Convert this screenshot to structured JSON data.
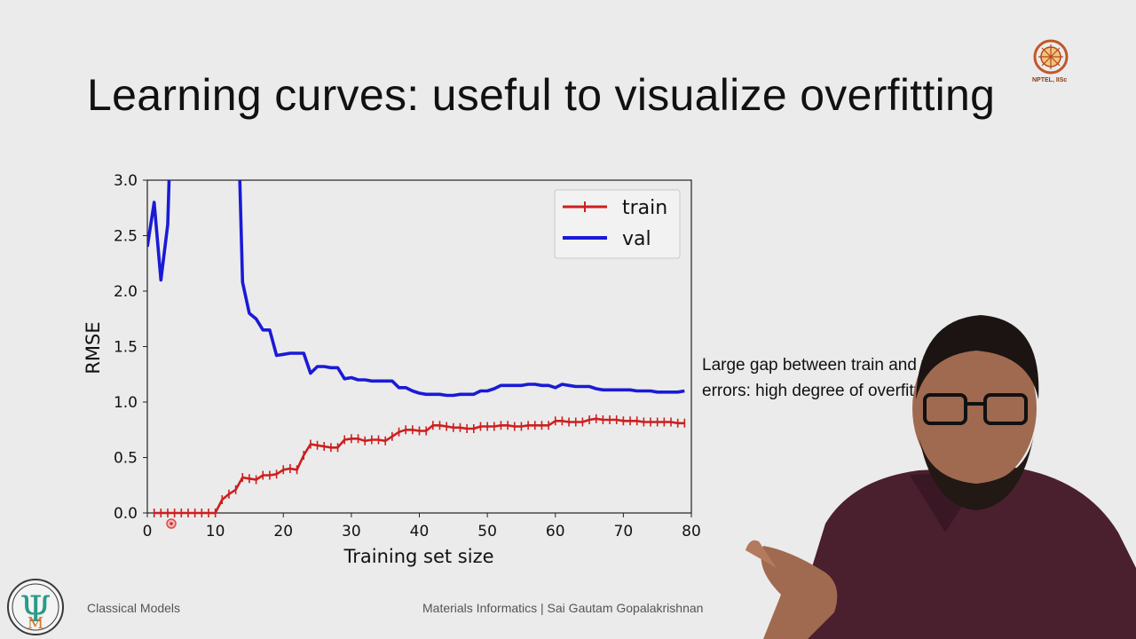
{
  "slide": {
    "title": "Learning curves: useful to visualize overfitting",
    "side_note": [
      "Large gap between train and validation",
      "errors: high degree of overfitting"
    ],
    "footer_left": "Classical Models",
    "footer_right": "Materials Informatics | Sai Gautam Gopalakrishnan",
    "logo_text": "NPTEL, IISc"
  },
  "colors": {
    "train": "#cc1f1f",
    "val": "#1a1ad6",
    "background": "#ebebeb"
  },
  "chart_data": {
    "type": "line",
    "title": "",
    "xlabel": "Training set size",
    "ylabel": "RMSE",
    "xlim": [
      0,
      80
    ],
    "ylim": [
      0,
      3.0
    ],
    "xticks": [
      0,
      10,
      20,
      30,
      40,
      50,
      60,
      70,
      80
    ],
    "yticks": [
      0.0,
      0.5,
      1.0,
      1.5,
      2.0,
      2.5,
      3.0
    ],
    "xtick_labels": [
      "0",
      "10",
      "20",
      "30",
      "40",
      "50",
      "60",
      "70",
      "80"
    ],
    "ytick_labels": [
      "0.0",
      "0.5",
      "1.0",
      "1.5",
      "2.0",
      "2.5",
      "3.0"
    ],
    "legend_position": "top-right",
    "grid": false,
    "series": [
      {
        "name": "train",
        "color": "#cc1f1f",
        "marker": "+",
        "x": [
          1,
          2,
          3,
          4,
          5,
          6,
          7,
          8,
          9,
          10,
          11,
          12,
          13,
          14,
          15,
          16,
          17,
          18,
          19,
          20,
          21,
          22,
          23,
          24,
          25,
          26,
          27,
          28,
          29,
          30,
          31,
          32,
          33,
          34,
          35,
          36,
          37,
          38,
          39,
          40,
          41,
          42,
          43,
          44,
          45,
          46,
          47,
          48,
          49,
          50,
          51,
          52,
          53,
          54,
          55,
          56,
          57,
          58,
          59,
          60,
          61,
          62,
          63,
          64,
          65,
          66,
          67,
          68,
          69,
          70,
          71,
          72,
          73,
          74,
          75,
          76,
          77,
          78,
          79
        ],
        "y": [
          0,
          0,
          0,
          0,
          0,
          0,
          0,
          0,
          0,
          0,
          0.12,
          0.17,
          0.21,
          0.32,
          0.31,
          0.3,
          0.34,
          0.34,
          0.35,
          0.39,
          0.4,
          0.39,
          0.52,
          0.62,
          0.61,
          0.6,
          0.59,
          0.59,
          0.66,
          0.67,
          0.67,
          0.65,
          0.66,
          0.66,
          0.65,
          0.69,
          0.73,
          0.75,
          0.75,
          0.74,
          0.74,
          0.79,
          0.79,
          0.78,
          0.77,
          0.77,
          0.76,
          0.76,
          0.78,
          0.78,
          0.78,
          0.79,
          0.79,
          0.78,
          0.78,
          0.79,
          0.79,
          0.79,
          0.79,
          0.83,
          0.83,
          0.82,
          0.82,
          0.82,
          0.84,
          0.85,
          0.84,
          0.84,
          0.84,
          0.83,
          0.83,
          0.83,
          0.82,
          0.82,
          0.82,
          0.82,
          0.82,
          0.81,
          0.81
        ]
      },
      {
        "name": "val",
        "color": "#1a1ad6",
        "marker": "none",
        "x": [
          0,
          1,
          2,
          3,
          3.2,
          3.4,
          13.4,
          13.6,
          14,
          15,
          16,
          17,
          18,
          19,
          20,
          21,
          22,
          23,
          24,
          25,
          26,
          27,
          28,
          29,
          30,
          31,
          32,
          33,
          34,
          35,
          36,
          37,
          38,
          39,
          40,
          41,
          42,
          43,
          44,
          45,
          46,
          47,
          48,
          49,
          50,
          51,
          52,
          53,
          54,
          55,
          56,
          57,
          58,
          59,
          60,
          61,
          62,
          63,
          64,
          65,
          66,
          67,
          68,
          69,
          70,
          71,
          72,
          73,
          74,
          75,
          76,
          77,
          78,
          79
        ],
        "y": [
          2.4,
          2.8,
          2.1,
          2.6,
          3.0,
          3.3,
          3.3,
          3.0,
          2.08,
          1.8,
          1.75,
          1.65,
          1.65,
          1.42,
          1.43,
          1.44,
          1.44,
          1.44,
          1.26,
          1.32,
          1.32,
          1.31,
          1.31,
          1.21,
          1.22,
          1.2,
          1.2,
          1.19,
          1.19,
          1.19,
          1.19,
          1.13,
          1.13,
          1.1,
          1.08,
          1.07,
          1.07,
          1.07,
          1.06,
          1.06,
          1.07,
          1.07,
          1.07,
          1.1,
          1.1,
          1.12,
          1.15,
          1.15,
          1.15,
          1.15,
          1.16,
          1.16,
          1.15,
          1.15,
          1.13,
          1.16,
          1.15,
          1.14,
          1.14,
          1.14,
          1.12,
          1.11,
          1.11,
          1.11,
          1.11,
          1.11,
          1.1,
          1.1,
          1.1,
          1.09,
          1.09,
          1.09,
          1.09,
          1.1
        ]
      }
    ]
  }
}
